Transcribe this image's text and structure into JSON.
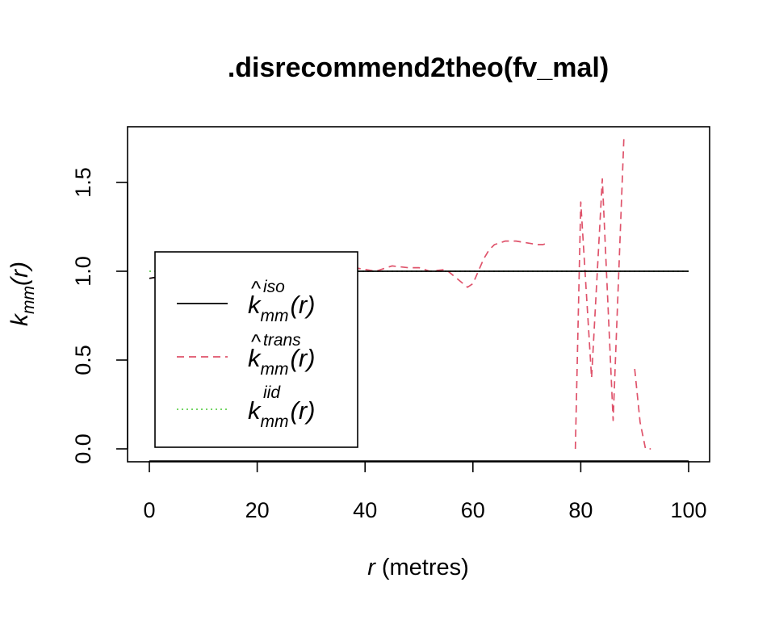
{
  "chart_data": {
    "type": "line",
    "title": ".disrecommend2theo(fv_mal)",
    "xlabel": {
      "var": "r",
      "units": "(metres)"
    },
    "ylabel": {
      "base": "k",
      "sub": "mm",
      "arg": "(r)"
    },
    "xlim": [
      0,
      100
    ],
    "ylim": [
      0.0,
      1.75
    ],
    "x_ticks": [
      "0",
      "20",
      "40",
      "60",
      "80",
      "100"
    ],
    "x_tick_values": [
      0,
      20,
      40,
      60,
      80,
      100
    ],
    "y_ticks": [
      "0.0",
      "0.5",
      "1.0",
      "1.5"
    ],
    "y_tick_values": [
      0.0,
      0.5,
      1.0,
      1.5
    ],
    "grid": false,
    "legend_position": "left",
    "series": [
      {
        "key": "iso",
        "base": "k",
        "hat": true,
        "sup": "iso",
        "sub": "mm",
        "arg": "(r)",
        "color": "#000000",
        "dash": "solid",
        "x": [
          0,
          2,
          4,
          6,
          8,
          10,
          15,
          20,
          30,
          40,
          50,
          60,
          70,
          80,
          90,
          100
        ],
        "y": [
          0.96,
          0.97,
          0.99,
          1.0,
          0.99,
          1.0,
          1.0,
          1.0,
          1.0,
          1.0,
          1.0,
          1.0,
          1.0,
          1.0,
          1.0,
          1.0
        ]
      },
      {
        "key": "trans",
        "base": "k",
        "hat": true,
        "sup": "trans",
        "sub": "mm",
        "arg": "(r)",
        "color": "#DF536B",
        "dash": "dashed",
        "segments": [
          {
            "x": [
              0,
              2,
              4,
              6,
              8,
              10,
              12,
              15,
              18,
              20,
              25,
              30,
              33,
              36,
              38,
              40,
              42,
              45,
              48,
              50,
              52,
              55,
              57,
              59,
              60,
              61,
              62,
              63,
              64,
              65,
              66,
              68,
              70,
              72,
              73,
              74
            ],
            "y": [
              0.96,
              0.97,
              0.99,
              1.0,
              0.99,
              0.98,
              0.98,
              0.98,
              0.99,
              0.99,
              1.0,
              1.02,
              1.01,
              1.01,
              1.02,
              1.01,
              1.0,
              1.03,
              1.02,
              1.02,
              1.0,
              1.01,
              0.96,
              0.91,
              0.93,
              1.0,
              1.07,
              1.12,
              1.15,
              1.16,
              1.17,
              1.17,
              1.16,
              1.15,
              1.15,
              1.16
            ]
          },
          {
            "x": [
              79,
              80,
              82,
              84,
              86,
              88
            ],
            "y": [
              0.0,
              1.39,
              0.4,
              1.52,
              0.16,
              1.75
            ]
          },
          {
            "x": [
              90,
              91,
              92,
              93
            ],
            "y": [
              0.45,
              0.15,
              0.0,
              0.0
            ]
          }
        ]
      },
      {
        "key": "iid",
        "base": "k",
        "hat": false,
        "sup": "iid",
        "sub": "mm",
        "arg": "(r)",
        "color": "#61D04F",
        "dash": "dotted",
        "x": [
          0,
          100
        ],
        "y": [
          1.0,
          1.0
        ]
      }
    ]
  }
}
